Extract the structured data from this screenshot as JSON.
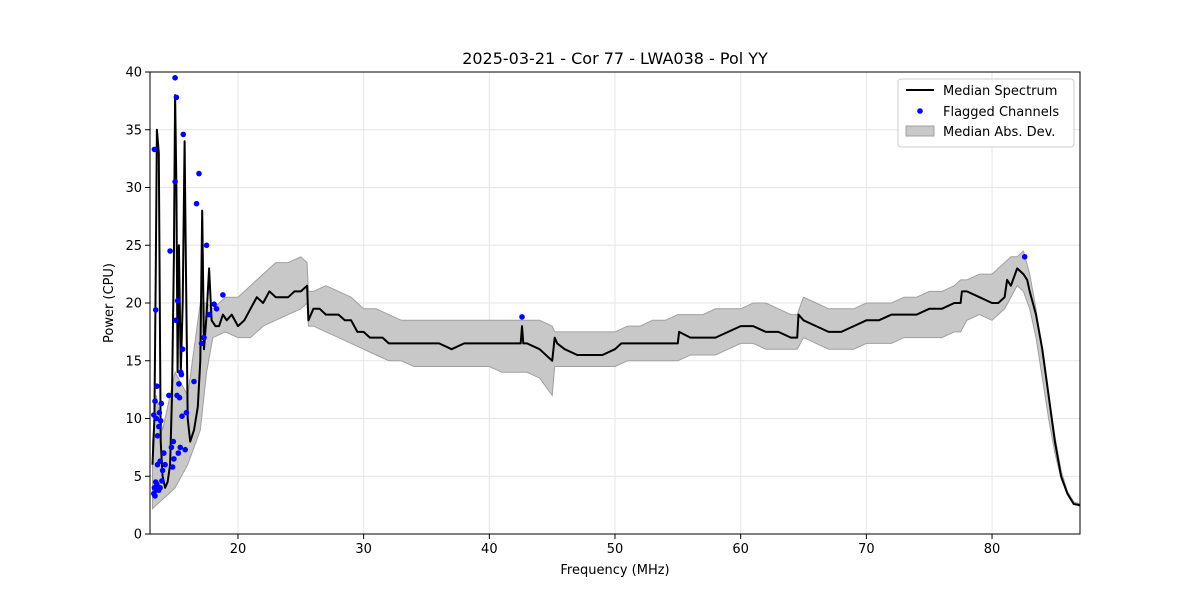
{
  "colors": {
    "median_line": "#000000",
    "flagged": "#0000ff",
    "mad_fill": "#c8c8c8",
    "mad_edge": "#a0a0a0",
    "grid": "#e6e6e6"
  },
  "chart_data": {
    "type": "line",
    "title": "2025-03-21 - Cor 77 - LWA038 - Pol YY",
    "xlabel": "Frequency (MHz)",
    "ylabel": "Power (CPU)",
    "xlim": [
      13.0,
      87.0
    ],
    "ylim": [
      0,
      40
    ],
    "xticks": [
      20,
      30,
      40,
      50,
      60,
      70,
      80
    ],
    "yticks": [
      0,
      5,
      10,
      15,
      20,
      25,
      30,
      35,
      40
    ],
    "grid": true,
    "legend": {
      "placement": "top-right",
      "entries": [
        "Median Spectrum",
        "Flagged Channels",
        "Median Abs. Dev."
      ]
    },
    "series": [
      {
        "name": "Median Spectrum",
        "kind": "line",
        "x": [
          13.2,
          13.35,
          13.45,
          13.55,
          13.7,
          13.85,
          14.0,
          14.2,
          14.4,
          14.6,
          14.75,
          14.9,
          15.0,
          15.1,
          15.2,
          15.3,
          15.45,
          15.6,
          15.75,
          15.85,
          16.0,
          16.2,
          16.5,
          16.8,
          17.0,
          17.15,
          17.3,
          17.5,
          17.7,
          17.9,
          18.2,
          18.5,
          18.8,
          19.1,
          19.5,
          20.0,
          20.5,
          21.0,
          21.5,
          22.0,
          22.5,
          23.0,
          23.5,
          24.0,
          24.5,
          25.0,
          25.5,
          25.6,
          26.0,
          26.5,
          27.0,
          27.5,
          28.0,
          28.5,
          29.0,
          29.5,
          30.0,
          30.5,
          31.0,
          31.5,
          32.0,
          32.5,
          33.0,
          34.0,
          35.0,
          36.0,
          37.0,
          38.0,
          39.0,
          40.0,
          41.0,
          42.0,
          42.5,
          42.6,
          42.7,
          43.0,
          44.0,
          45.0,
          45.2,
          45.4,
          46.0,
          47.0,
          48.0,
          49.0,
          50.0,
          50.5,
          51.0,
          52.0,
          53.0,
          54.0,
          55.0,
          55.1,
          56.0,
          57.0,
          58.0,
          59.0,
          60.0,
          61.0,
          62.0,
          63.0,
          64.0,
          64.5,
          64.6,
          65.0,
          66.0,
          67.0,
          68.0,
          69.0,
          70.0,
          71.0,
          72.0,
          73.0,
          74.0,
          75.0,
          76.0,
          77.0,
          77.5,
          77.6,
          78.0,
          79.0,
          80.0,
          80.5,
          81.0,
          81.2,
          81.5,
          82.0,
          82.5,
          82.8,
          83.0,
          83.5,
          84.0,
          84.5,
          85.0,
          85.5,
          86.0,
          86.5,
          87.0
        ],
        "y": [
          6.0,
          10.0,
          22.0,
          35.0,
          33.0,
          8.0,
          5.0,
          4.0,
          4.5,
          6.0,
          12.0,
          24.0,
          38.0,
          30.0,
          14.0,
          25.0,
          14.0,
          20.0,
          34.0,
          24.0,
          10.0,
          8.0,
          9.0,
          11.0,
          15.0,
          28.0,
          16.0,
          19.0,
          23.0,
          18.5,
          18.0,
          18.0,
          19.0,
          18.5,
          19.0,
          18.0,
          18.5,
          19.5,
          20.5,
          20.0,
          21.0,
          20.5,
          20.5,
          20.5,
          21.0,
          21.0,
          21.5,
          18.5,
          19.5,
          19.5,
          19.0,
          19.0,
          19.0,
          18.5,
          18.5,
          17.5,
          17.5,
          17.0,
          17.0,
          17.0,
          16.5,
          16.5,
          16.5,
          16.5,
          16.5,
          16.5,
          16.0,
          16.5,
          16.5,
          16.5,
          16.5,
          16.5,
          16.5,
          18.0,
          16.5,
          16.5,
          16.0,
          15.0,
          17.0,
          16.5,
          16.0,
          15.5,
          15.5,
          15.5,
          16.0,
          16.5,
          16.5,
          16.5,
          16.5,
          16.5,
          16.5,
          17.5,
          17.0,
          17.0,
          17.0,
          17.5,
          18.0,
          18.0,
          17.5,
          17.5,
          17.0,
          17.0,
          19.0,
          18.5,
          18.0,
          17.5,
          17.5,
          18.0,
          18.5,
          18.5,
          19.0,
          19.0,
          19.0,
          19.5,
          19.5,
          20.0,
          20.0,
          21.0,
          21.0,
          20.5,
          20.0,
          20.0,
          20.5,
          22.0,
          21.5,
          23.0,
          22.5,
          22.0,
          21.0,
          19.0,
          16.0,
          12.0,
          8.0,
          5.0,
          3.5,
          2.6,
          2.5
        ]
      },
      {
        "name": "Median Abs. Dev.",
        "kind": "band",
        "x": [
          13.2,
          13.5,
          14.0,
          15.0,
          16.0,
          17.0,
          17.5,
          18.0,
          19.0,
          20.0,
          21.0,
          22.0,
          23.0,
          24.0,
          25.0,
          25.5,
          25.6,
          26.0,
          27.0,
          28.0,
          29.0,
          30.0,
          31.0,
          32.0,
          33.0,
          34.0,
          35.0,
          36.0,
          37.0,
          38.0,
          39.0,
          40.0,
          41.0,
          42.0,
          43.0,
          44.0,
          45.0,
          45.2,
          46.0,
          47.0,
          48.0,
          49.0,
          50.0,
          51.0,
          52.0,
          53.0,
          54.0,
          55.0,
          56.0,
          57.0,
          58.0,
          59.0,
          60.0,
          61.0,
          62.0,
          63.0,
          64.0,
          64.5,
          65.0,
          66.0,
          67.0,
          68.0,
          69.0,
          70.0,
          71.0,
          72.0,
          73.0,
          74.0,
          75.0,
          76.0,
          77.0,
          77.5,
          78.0,
          79.0,
          80.0,
          81.0,
          81.5,
          82.0,
          82.5,
          83.0,
          83.5,
          84.0,
          84.5,
          85.0,
          85.5,
          86.0,
          86.5,
          87.0
        ],
        "lower": [
          2.2,
          2.5,
          3.0,
          4.0,
          6.0,
          9.0,
          14.0,
          17.0,
          17.5,
          17.0,
          17.0,
          18.0,
          18.5,
          19.0,
          19.5,
          20.0,
          18.0,
          18.0,
          17.5,
          17.0,
          16.5,
          16.0,
          15.5,
          15.0,
          15.0,
          14.5,
          14.5,
          14.5,
          14.5,
          14.5,
          14.5,
          14.5,
          14.0,
          14.0,
          14.0,
          13.5,
          12.0,
          14.5,
          14.5,
          14.5,
          14.5,
          14.5,
          14.5,
          15.0,
          15.0,
          15.0,
          15.0,
          15.0,
          15.5,
          15.5,
          15.5,
          16.0,
          16.5,
          16.5,
          16.0,
          16.0,
          16.0,
          16.0,
          17.0,
          16.5,
          16.0,
          16.0,
          16.0,
          16.5,
          16.5,
          16.5,
          17.0,
          17.0,
          17.0,
          17.0,
          17.5,
          17.5,
          18.5,
          19.0,
          18.5,
          19.5,
          20.5,
          21.5,
          21.0,
          19.5,
          17.0,
          13.5,
          10.0,
          7.0,
          4.8,
          3.4,
          2.6,
          2.4
        ],
        "upper": [
          8.0,
          12.0,
          9.0,
          14.0,
          12.0,
          20.0,
          20.0,
          19.5,
          20.5,
          20.5,
          21.5,
          22.5,
          23.5,
          23.5,
          24.0,
          23.5,
          21.0,
          21.0,
          21.5,
          21.0,
          20.5,
          19.5,
          19.5,
          19.0,
          18.5,
          18.5,
          18.5,
          18.5,
          18.5,
          18.5,
          18.5,
          18.5,
          18.5,
          18.5,
          18.5,
          18.5,
          18.0,
          17.5,
          17.5,
          17.5,
          17.5,
          17.5,
          17.5,
          18.0,
          18.0,
          18.5,
          18.5,
          19.0,
          19.0,
          19.0,
          19.5,
          19.5,
          19.5,
          20.0,
          20.0,
          19.5,
          19.0,
          19.0,
          20.5,
          20.0,
          19.5,
          19.5,
          19.5,
          20.0,
          20.0,
          20.0,
          20.5,
          20.5,
          21.0,
          21.0,
          21.5,
          22.0,
          22.0,
          22.5,
          22.5,
          23.5,
          24.0,
          24.0,
          24.5,
          22.5,
          19.5,
          15.5,
          12.0,
          8.5,
          5.5,
          3.7,
          2.8,
          2.6
        ]
      },
      {
        "name": "Flagged Channels",
        "kind": "scatter",
        "x": [
          13.3,
          13.3,
          13.35,
          13.35,
          13.4,
          13.4,
          13.45,
          13.45,
          13.5,
          13.5,
          13.55,
          13.55,
          13.6,
          13.6,
          13.7,
          13.7,
          13.75,
          13.8,
          13.8,
          13.85,
          13.9,
          13.95,
          14.0,
          14.1,
          14.2,
          14.5,
          14.6,
          14.7,
          14.8,
          14.85,
          14.9,
          15.0,
          15.0,
          15.05,
          15.1,
          15.15,
          15.2,
          15.25,
          15.3,
          15.35,
          15.4,
          15.45,
          15.5,
          15.55,
          15.6,
          15.65,
          15.8,
          15.9,
          16.5,
          16.7,
          16.9,
          17.1,
          17.3,
          17.5,
          17.7,
          18.1,
          18.3,
          18.8,
          42.6,
          82.6
        ],
        "y": [
          3.5,
          10.3,
          4.0,
          33.3,
          3.3,
          11.5,
          4.5,
          19.4,
          3.8,
          10.0,
          4.3,
          12.8,
          6.0,
          8.5,
          9.3,
          3.8,
          10.5,
          6.3,
          4.0,
          9.8,
          11.3,
          4.6,
          5.5,
          7.0,
          6.0,
          12.0,
          24.5,
          7.5,
          5.8,
          8.0,
          6.5,
          39.5,
          30.5,
          18.5,
          37.8,
          12.0,
          20.2,
          7.0,
          13.0,
          11.8,
          7.5,
          14.0,
          13.8,
          10.2,
          16.0,
          34.6,
          7.3,
          10.5,
          13.2,
          28.6,
          31.2,
          16.5,
          17.0,
          25.0,
          19.0,
          19.9,
          19.5,
          20.7,
          18.8,
          24.0
        ]
      }
    ]
  }
}
